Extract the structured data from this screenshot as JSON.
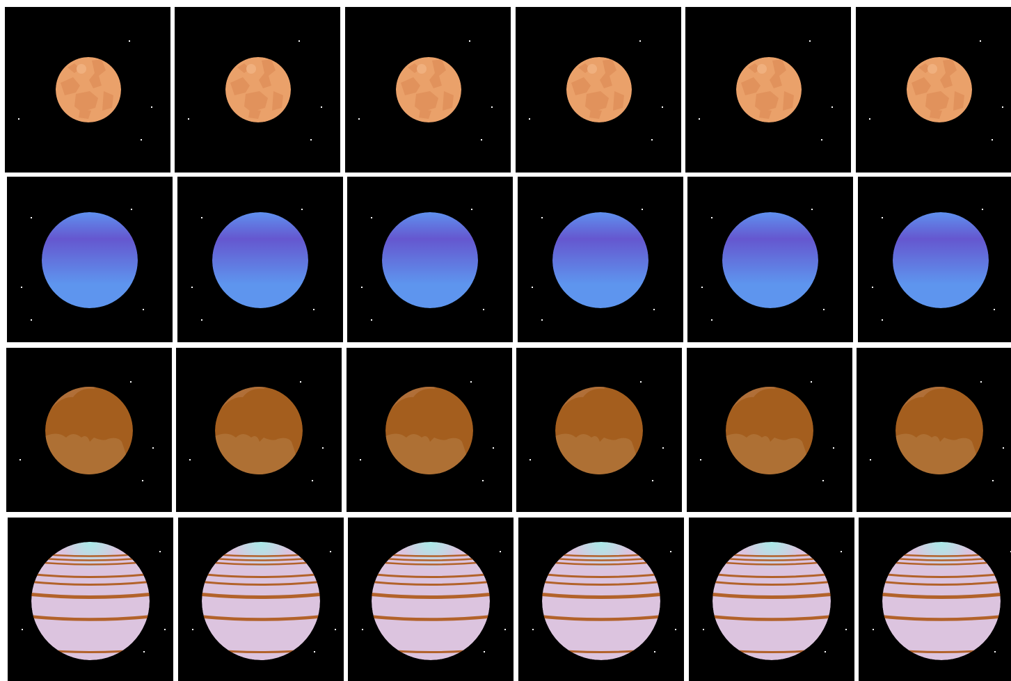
{
  "sprite_sheet": {
    "background_color": "#ffffff",
    "tile_color": "#000000",
    "star_color": "#ffffff",
    "rows": [
      {
        "name": "orange-planet",
        "icon": "orange-planet-icon",
        "frames": 6,
        "colors": {
          "base": "#eaa16a",
          "light": "#f0b07e",
          "spots": "#e1925c"
        }
      },
      {
        "name": "blue-planet",
        "icon": "blue-planet-icon",
        "frames": 6,
        "colors": {
          "top": "#5f90ee",
          "band": "#6557cf",
          "bottom": "#5e95ee"
        }
      },
      {
        "name": "brown-planet",
        "icon": "brown-planet-icon",
        "frames": 6,
        "colors": {
          "base": "#a45e1e",
          "light": "#b06f38",
          "lower": "#ae7034"
        }
      },
      {
        "name": "striped-planet",
        "icon": "striped-planet-icon",
        "frames": 6,
        "colors": {
          "base": "#dcc4df",
          "cap": "#a8ebe8",
          "stripe": "#b2622a"
        }
      }
    ]
  }
}
